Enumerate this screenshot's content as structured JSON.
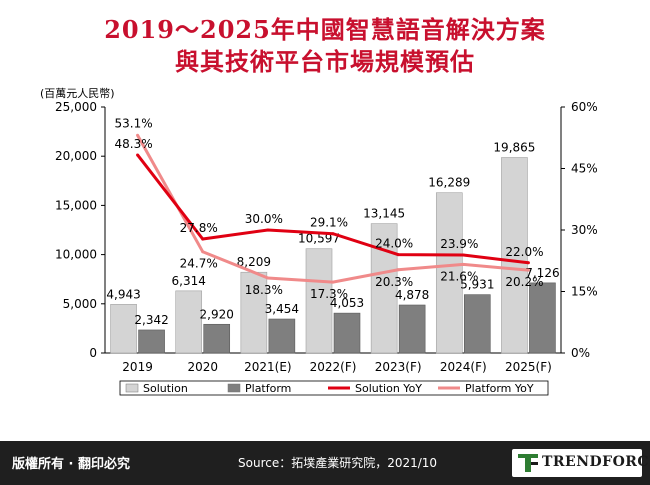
{
  "title_line1": "2019～2025年中國智慧語音解決方案",
  "title_line2": "與其技術平台市場規模預估",
  "footer": {
    "rights": "版權所有 · 翻印必究",
    "source": "Source：拓墣產業研究院，2021/10",
    "brand": "TRENDFORCE"
  },
  "colors": {
    "title": "#c8102e",
    "solution_bar": "#d4d4d4",
    "platform_bar": "#7f7f7f",
    "solution_line": "#e00012",
    "platform_line": "#f08a8a",
    "footer_bg": "#1f1f1f"
  },
  "chart_data": {
    "type": "bar",
    "unit_label": "(百萬元人民幣)",
    "categories": [
      "2019",
      "2020",
      "2021(E)",
      "2022(F)",
      "2023(F)",
      "2024(F)",
      "2025(F)"
    ],
    "series": [
      {
        "name": "Solution",
        "kind": "bar",
        "axis": "left",
        "values": [
          4943,
          6314,
          8209,
          10597,
          13145,
          16289,
          19865
        ],
        "labels": [
          "4,943",
          "6,314",
          "8,209",
          "10,597",
          "13,145",
          "16,289",
          "19,865"
        ]
      },
      {
        "name": "Platform",
        "kind": "bar",
        "axis": "left",
        "values": [
          2342,
          2920,
          3454,
          4053,
          4878,
          5931,
          7126
        ],
        "labels": [
          "2,342",
          "2,920",
          "3,454",
          "4,053",
          "4,878",
          "5,931",
          "7,126"
        ]
      },
      {
        "name": "Solution YoY",
        "kind": "line",
        "axis": "right",
        "values": [
          48.3,
          27.8,
          30.0,
          29.1,
          24.0,
          23.9,
          22.0
        ],
        "labels": [
          "48.3%",
          "27.8%",
          "30.0%",
          "29.1%",
          "24.0%",
          "23.9%",
          "22.0%"
        ]
      },
      {
        "name": "Platform YoY",
        "kind": "line",
        "axis": "right",
        "values": [
          53.1,
          24.7,
          18.3,
          17.3,
          20.3,
          21.6,
          20.2
        ],
        "labels": [
          "53.1%",
          "24.7%",
          "18.3%",
          "17.3%",
          "20.3%",
          "21.6%",
          "20.2%"
        ]
      }
    ],
    "ylim_left": [
      0,
      25000
    ],
    "yticks_left": [
      "0",
      "5,000",
      "10,000",
      "15,000",
      "20,000",
      "25,000"
    ],
    "ylim_right": [
      0,
      60
    ],
    "yticks_right": [
      "0%",
      "15%",
      "30%",
      "45%",
      "60%"
    ],
    "grid": false,
    "legend": "bottom"
  }
}
